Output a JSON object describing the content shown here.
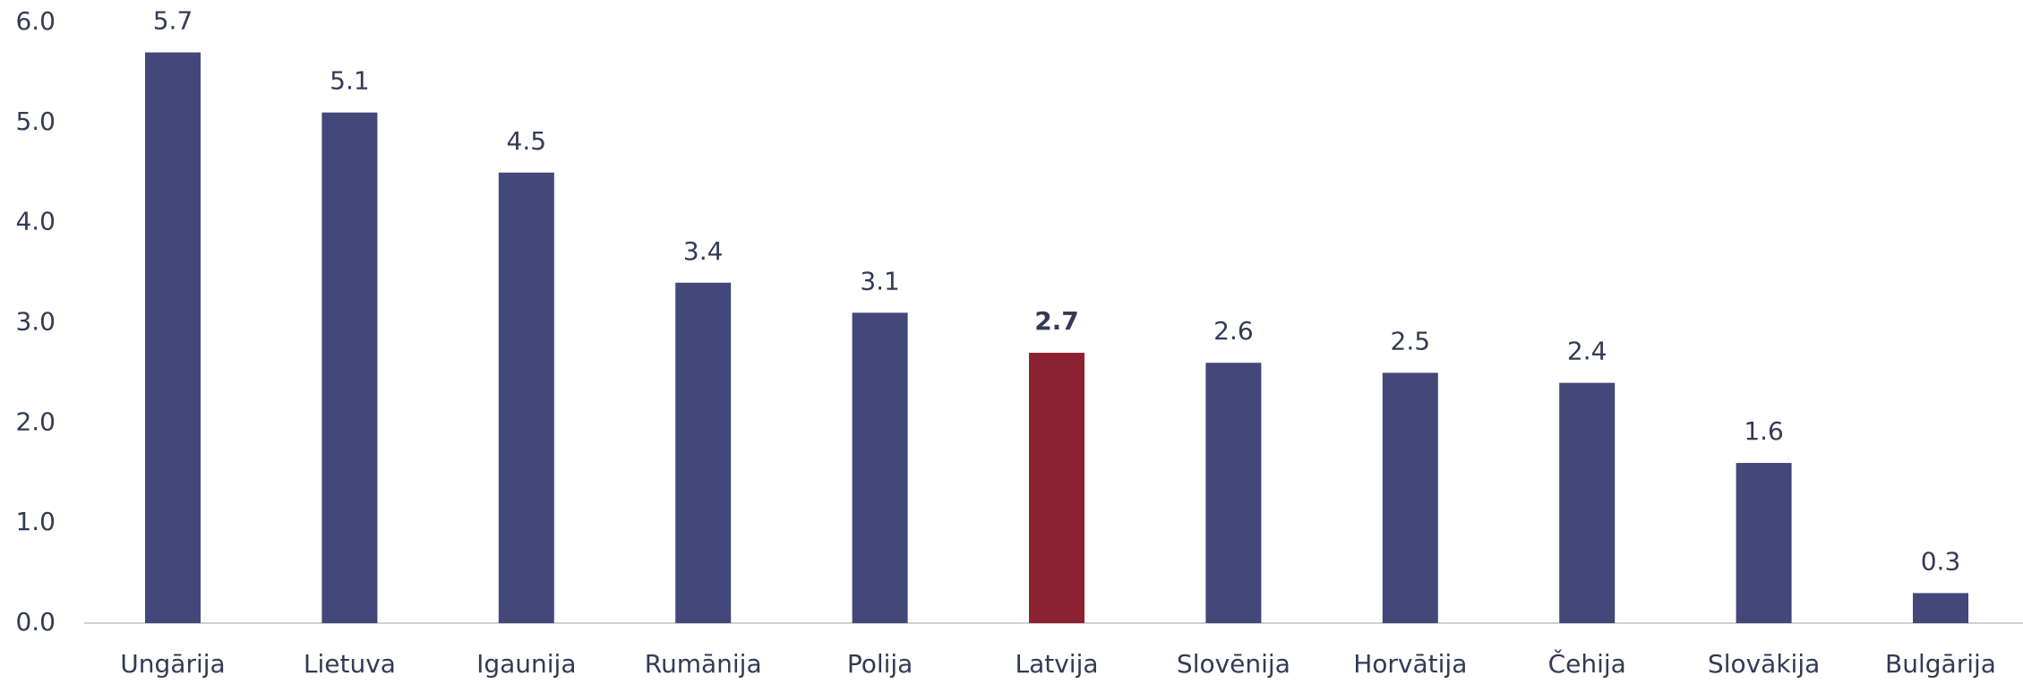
{
  "chart_data": {
    "type": "bar",
    "categories": [
      "Ungārija",
      "Lietuva",
      "Igaunija",
      "Rumānija",
      "Polija",
      "Latvija",
      "Slovēnija",
      "Horvātija",
      "Čehija",
      "Slovākija",
      "Bulgārija"
    ],
    "values": [
      5.7,
      5.1,
      4.5,
      3.4,
      3.1,
      2.7,
      2.6,
      2.5,
      2.4,
      1.6,
      0.3
    ],
    "colors": [
      "#434779",
      "#434779",
      "#434779",
      "#434779",
      "#434779",
      "#8b2232",
      "#434779",
      "#434779",
      "#434779",
      "#434779",
      "#434779"
    ],
    "ylim": [
      0,
      6
    ],
    "yticks": [
      {
        "value": 0,
        "label": "0.0"
      },
      {
        "value": 1,
        "label": "1.0"
      },
      {
        "value": 2,
        "label": "2.0"
      },
      {
        "value": 3,
        "label": "3.0"
      },
      {
        "value": 4,
        "label": "4.0"
      },
      {
        "value": 5,
        "label": "5.0"
      },
      {
        "value": 6,
        "label": "6.0"
      }
    ],
    "grid": false
  }
}
